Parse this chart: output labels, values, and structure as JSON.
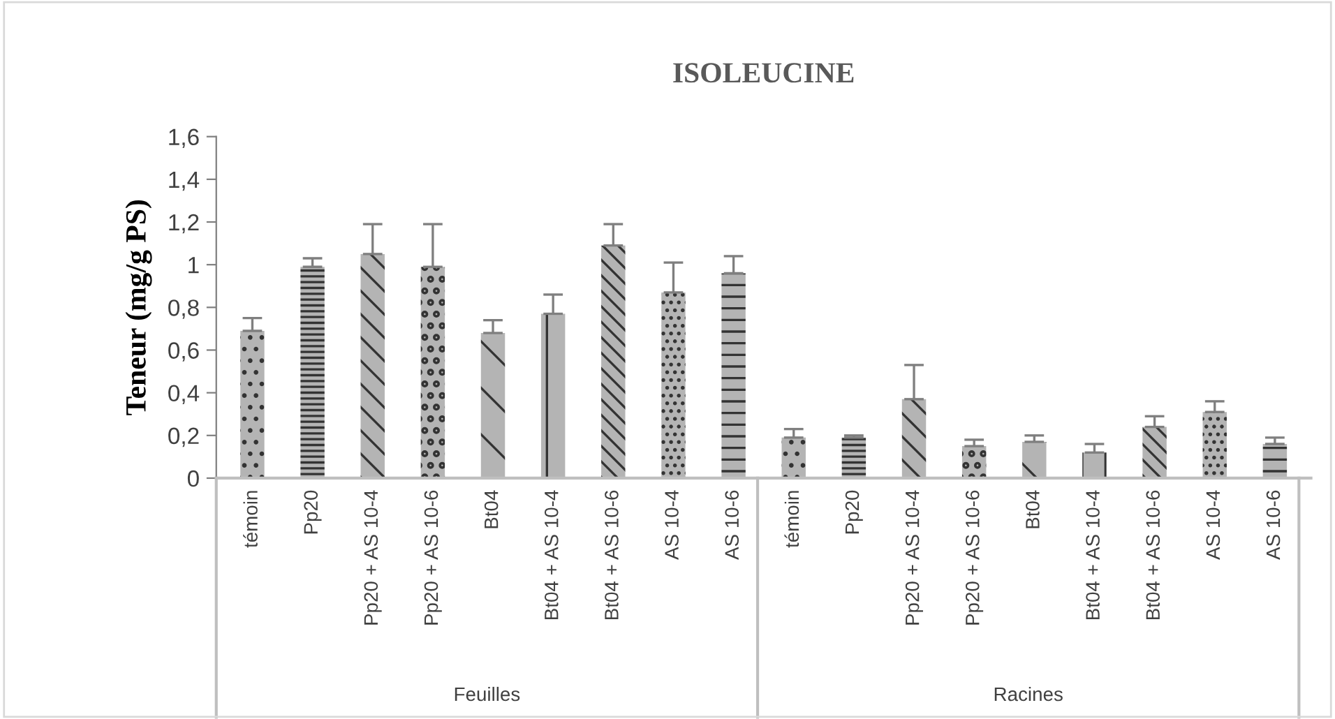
{
  "chart_data": {
    "type": "bar",
    "title": "ISOLEUCINE",
    "ylabel": "Teneur (mg/g PS)",
    "categories": [
      "témoin",
      "Pp20",
      "Pp20 + AS 10-4",
      "Pp20 + AS 10-6",
      "Bt04",
      "Bt04 + AS 10-4",
      "Bt04 + AS 10-6",
      "AS 10-4",
      "AS 10-6",
      "témoin",
      "Pp20",
      "Pp20 + AS 10-4",
      "Pp20 + AS 10-6",
      "Bt04",
      "Bt04 + AS 10-4",
      "Bt04 + AS 10-6",
      "AS 10-4",
      "AS 10-6"
    ],
    "values": [
      0.69,
      0.99,
      1.05,
      0.99,
      0.68,
      0.77,
      1.09,
      0.87,
      0.96,
      0.19,
      0.19,
      0.37,
      0.15,
      0.17,
      0.12,
      0.24,
      0.31,
      0.16
    ],
    "errors": [
      0.06,
      0.04,
      0.14,
      0.2,
      0.06,
      0.09,
      0.1,
      0.14,
      0.08,
      0.04,
      0.01,
      0.16,
      0.03,
      0.03,
      0.04,
      0.05,
      0.05,
      0.03
    ],
    "color": "#b4b4b4",
    "annotations": [
      "Feuilles",
      "Racines"
    ],
    "ylim": [
      0,
      1.6
    ],
    "yticks": [
      0,
      {
        "value": 0.2,
        "label": "0,2"
      },
      {
        "value": 0.4,
        "label": "0,4"
      },
      {
        "value": 0.6,
        "label": "0,6"
      },
      {
        "value": 0.8,
        "label": "0,8"
      },
      1,
      {
        "value": 1.2,
        "label": "1,2"
      },
      {
        "value": 1.4,
        "label": "1,4"
      },
      {
        "value": 1.6,
        "label": "1,6"
      }
    ],
    "grid": false,
    "legend": false
  }
}
